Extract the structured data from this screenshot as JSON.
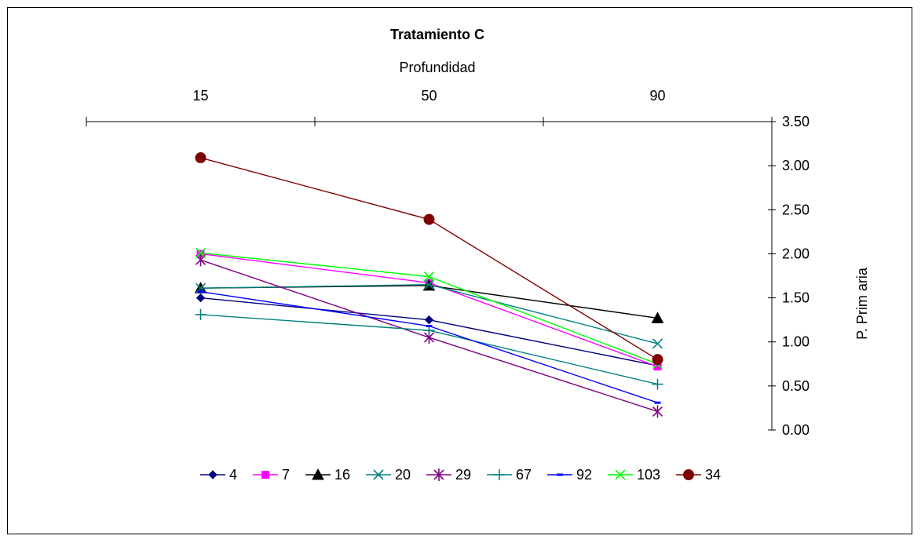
{
  "chart_data": {
    "type": "line",
    "title": "Tratamiento C",
    "xlabel": "Profundidad",
    "ylabel": "P. Prim aria",
    "categories": [
      "15",
      "50",
      "90"
    ],
    "ylim": [
      0,
      3.5
    ],
    "y_ticks": [
      "0.00",
      "0.50",
      "1.00",
      "1.50",
      "2.00",
      "2.50",
      "3.00",
      "3.50"
    ],
    "x_axis_position": "top",
    "y_axis_position": "right",
    "legend_position": "bottom",
    "grid": false,
    "series": [
      {
        "name": "4",
        "color": "#000080",
        "marker": "diamond",
        "values": [
          1.5,
          1.25,
          0.73
        ]
      },
      {
        "name": "7",
        "color": "#ff00ff",
        "marker": "square",
        "values": [
          2.0,
          1.67,
          0.72
        ]
      },
      {
        "name": "16",
        "color": "#000000",
        "marker": "triangle",
        "values": [
          1.61,
          1.64,
          1.27
        ]
      },
      {
        "name": "20",
        "color": "#008080",
        "marker": "x",
        "values": [
          1.61,
          1.65,
          0.98
        ]
      },
      {
        "name": "29",
        "color": "#800080",
        "marker": "star",
        "values": [
          1.93,
          1.05,
          0.21
        ]
      },
      {
        "name": "67",
        "color": "#008080",
        "marker": "plus",
        "values": [
          1.31,
          1.13,
          0.52
        ]
      },
      {
        "name": "92",
        "color": "#0000ff",
        "marker": "dash",
        "values": [
          1.57,
          1.18,
          0.31
        ]
      },
      {
        "name": "103",
        "color": "#00ff00",
        "marker": "x",
        "values": [
          2.01,
          1.74,
          0.75
        ]
      },
      {
        "name": "34",
        "color": "#800000",
        "marker": "circle",
        "values": [
          3.09,
          2.39,
          0.8
        ]
      }
    ]
  }
}
